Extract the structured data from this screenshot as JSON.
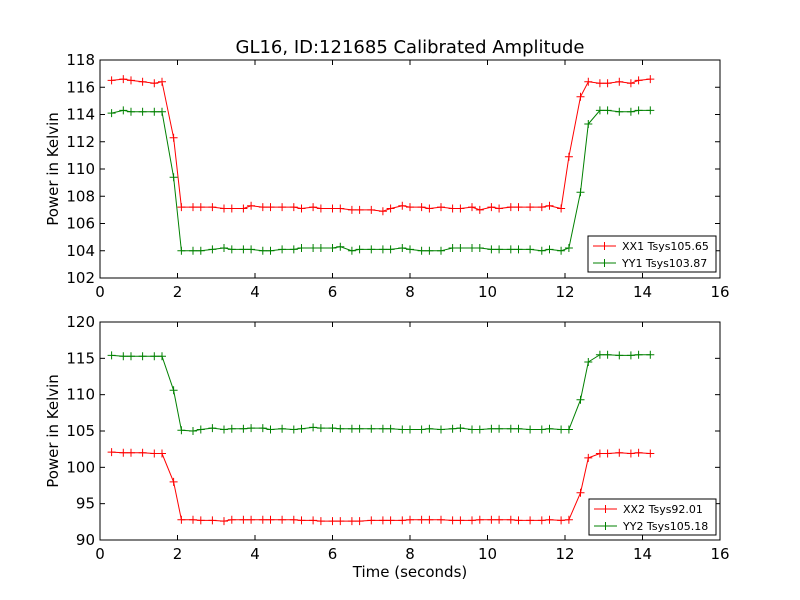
{
  "chart_data": [
    {
      "type": "line",
      "title": "GL16, ID:121685 Calibrated Amplitude",
      "xlabel": "",
      "ylabel": "Power in Kelvin",
      "xlim": [
        0,
        16
      ],
      "ylim": [
        102,
        118
      ],
      "xticks": [
        0,
        2,
        4,
        6,
        8,
        10,
        12,
        14,
        16
      ],
      "yticks": [
        102,
        104,
        106,
        108,
        110,
        112,
        114,
        116,
        118
      ],
      "grid": false,
      "legend_position": "lower-right",
      "x": [
        0.3,
        0.6,
        0.8,
        1.1,
        1.4,
        1.6,
        1.9,
        2.1,
        2.4,
        2.6,
        2.9,
        3.2,
        3.4,
        3.7,
        3.9,
        4.2,
        4.4,
        4.7,
        5.0,
        5.2,
        5.5,
        5.7,
        6.0,
        6.2,
        6.5,
        6.7,
        7.0,
        7.3,
        7.5,
        7.8,
        8.0,
        8.3,
        8.5,
        8.8,
        9.1,
        9.3,
        9.6,
        9.8,
        10.1,
        10.3,
        10.6,
        10.8,
        11.1,
        11.4,
        11.6,
        11.9,
        12.1,
        12.4,
        12.6,
        12.9,
        13.1,
        13.4,
        13.7,
        13.9,
        14.2
      ],
      "series": [
        {
          "name": "XX1 Tsys105.65",
          "color": "#ff0000",
          "values": [
            116.5,
            116.6,
            116.5,
            116.4,
            116.3,
            116.4,
            112.3,
            107.2,
            107.2,
            107.2,
            107.2,
            107.1,
            107.1,
            107.1,
            107.3,
            107.2,
            107.2,
            107.2,
            107.2,
            107.1,
            107.2,
            107.1,
            107.1,
            107.1,
            107.0,
            107.0,
            107.0,
            106.9,
            107.1,
            107.3,
            107.2,
            107.2,
            107.1,
            107.2,
            107.1,
            107.1,
            107.2,
            107.0,
            107.2,
            107.1,
            107.2,
            107.2,
            107.2,
            107.2,
            107.3,
            107.1,
            110.9,
            115.3,
            116.4,
            116.3,
            116.3,
            116.4,
            116.3,
            116.5,
            116.6
          ]
        },
        {
          "name": "YY1 Tsys103.87",
          "color": "#008000",
          "values": [
            114.1,
            114.3,
            114.2,
            114.2,
            114.2,
            114.2,
            109.4,
            104.0,
            104.0,
            104.0,
            104.1,
            104.2,
            104.1,
            104.1,
            104.1,
            104.0,
            104.0,
            104.1,
            104.1,
            104.2,
            104.2,
            104.2,
            104.2,
            104.3,
            104.0,
            104.1,
            104.1,
            104.1,
            104.1,
            104.2,
            104.1,
            104.0,
            104.0,
            104.0,
            104.2,
            104.2,
            104.2,
            104.2,
            104.1,
            104.1,
            104.1,
            104.1,
            104.1,
            104.0,
            104.1,
            104.0,
            104.2,
            108.3,
            113.3,
            114.3,
            114.3,
            114.2,
            114.2,
            114.3,
            114.3
          ]
        }
      ]
    },
    {
      "type": "line",
      "title": "",
      "xlabel": "Time (seconds)",
      "ylabel": "Power in Kelvin",
      "xlim": [
        0,
        16
      ],
      "ylim": [
        90,
        120
      ],
      "xticks": [
        0,
        2,
        4,
        6,
        8,
        10,
        12,
        14,
        16
      ],
      "yticks": [
        90,
        95,
        100,
        105,
        110,
        115,
        120
      ],
      "grid": false,
      "legend_position": "lower-right",
      "x": [
        0.3,
        0.6,
        0.8,
        1.1,
        1.4,
        1.6,
        1.9,
        2.1,
        2.4,
        2.6,
        2.9,
        3.2,
        3.4,
        3.7,
        3.9,
        4.2,
        4.4,
        4.7,
        5.0,
        5.2,
        5.5,
        5.7,
        6.0,
        6.2,
        6.5,
        6.7,
        7.0,
        7.3,
        7.5,
        7.8,
        8.0,
        8.3,
        8.5,
        8.8,
        9.1,
        9.3,
        9.6,
        9.8,
        10.1,
        10.3,
        10.6,
        10.8,
        11.1,
        11.4,
        11.6,
        11.9,
        12.1,
        12.4,
        12.6,
        12.9,
        13.1,
        13.4,
        13.7,
        13.9,
        14.2
      ],
      "series": [
        {
          "name": "XX2 Tsys92.01",
          "color": "#ff0000",
          "values": [
            102.1,
            102.0,
            102.0,
            102.0,
            101.9,
            101.9,
            98.0,
            92.8,
            92.8,
            92.7,
            92.7,
            92.6,
            92.8,
            92.8,
            92.8,
            92.8,
            92.8,
            92.8,
            92.8,
            92.7,
            92.7,
            92.6,
            92.6,
            92.6,
            92.6,
            92.6,
            92.7,
            92.7,
            92.7,
            92.7,
            92.8,
            92.8,
            92.8,
            92.8,
            92.7,
            92.7,
            92.7,
            92.8,
            92.8,
            92.8,
            92.8,
            92.7,
            92.7,
            92.7,
            92.8,
            92.7,
            92.8,
            96.5,
            101.3,
            101.9,
            101.9,
            102.0,
            101.9,
            102.0,
            101.9
          ]
        },
        {
          "name": "YY2 Tsys105.18",
          "color": "#008000",
          "values": [
            115.4,
            115.3,
            115.3,
            115.3,
            115.3,
            115.3,
            110.6,
            105.1,
            105.0,
            105.2,
            105.4,
            105.2,
            105.3,
            105.3,
            105.4,
            105.4,
            105.2,
            105.3,
            105.2,
            105.3,
            105.5,
            105.4,
            105.4,
            105.3,
            105.3,
            105.3,
            105.3,
            105.3,
            105.3,
            105.2,
            105.2,
            105.2,
            105.3,
            105.2,
            105.3,
            105.4,
            105.2,
            105.2,
            105.3,
            105.3,
            105.3,
            105.3,
            105.2,
            105.2,
            105.3,
            105.2,
            105.2,
            109.3,
            114.5,
            115.5,
            115.5,
            115.4,
            115.4,
            115.5,
            115.5
          ]
        }
      ]
    }
  ]
}
